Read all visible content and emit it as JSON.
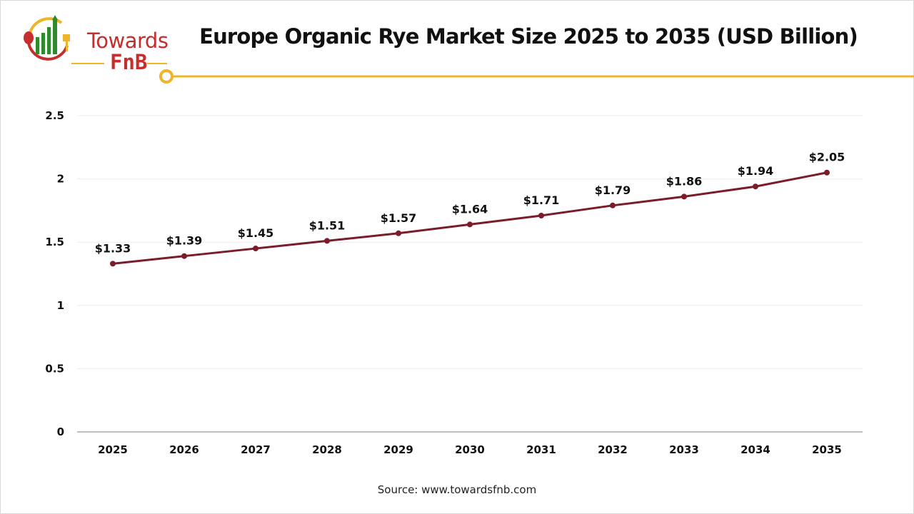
{
  "logo": {
    "line1": "Towards",
    "line2": "FnB"
  },
  "colors": {
    "line": "#7b1c2a",
    "accent": "#f0b429",
    "logo_red": "#c62d2d",
    "logo_green": "#2e8b2e"
  },
  "source": "Source: www.towardsfnb.com",
  "chart_data": {
    "type": "line",
    "title": "Europe Organic Rye Market Size 2025 to 2035 (USD Billion)",
    "xlabel": "",
    "ylabel": "",
    "categories": [
      "2025",
      "2026",
      "2027",
      "2028",
      "2029",
      "2030",
      "2031",
      "2032",
      "2033",
      "2034",
      "2035"
    ],
    "values": [
      1.33,
      1.39,
      1.45,
      1.51,
      1.57,
      1.64,
      1.71,
      1.79,
      1.86,
      1.94,
      2.05
    ],
    "data_labels": [
      "$1.33",
      "$1.39",
      "$1.45",
      "$1.51",
      "$1.57",
      "$1.64",
      "$1.71",
      "$1.79",
      "$1.86",
      "$1.94",
      "$2.05"
    ],
    "ylim": [
      0,
      2.5
    ],
    "yticks": [
      "0",
      "0.5",
      "1",
      "1.5",
      "2",
      "2.5"
    ],
    "grid": true,
    "legend": "none"
  }
}
